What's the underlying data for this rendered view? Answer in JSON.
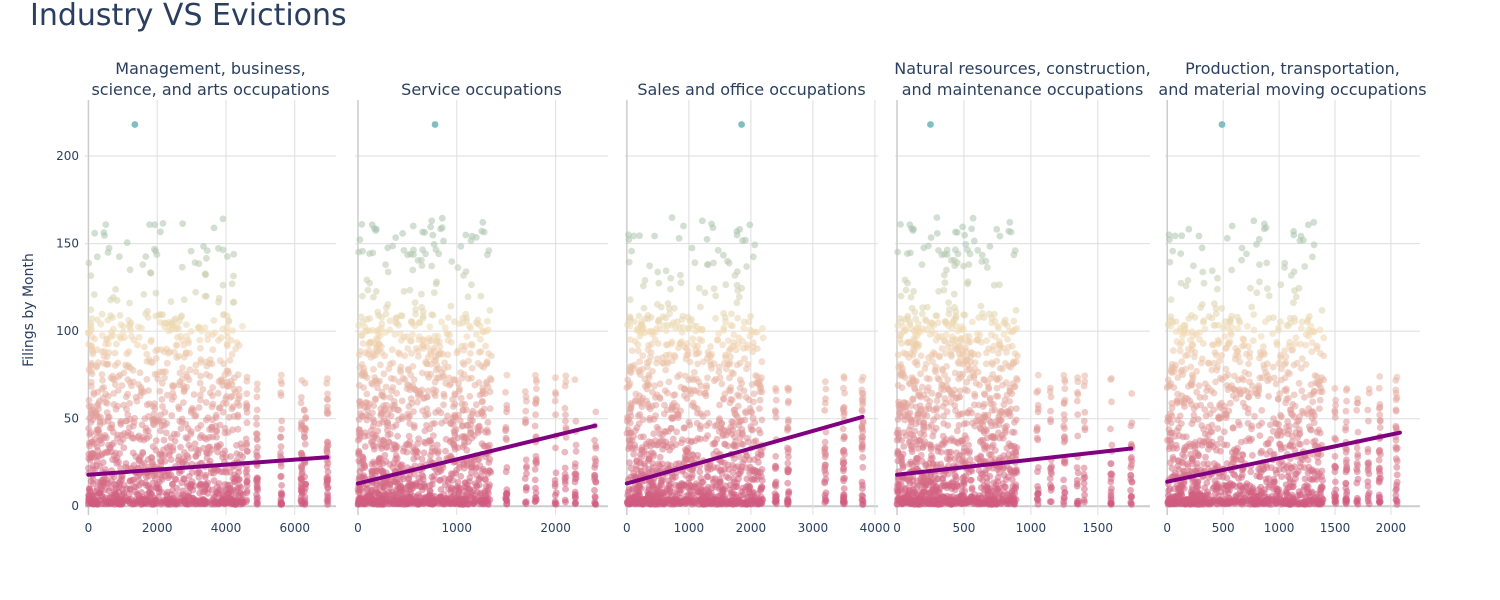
{
  "title": "Industry VS Evictions",
  "chart_data": [
    {
      "type": "scatter",
      "title": "Management, business,\nscience, and arts occupations",
      "ylabel": "Filings by Month",
      "xlim": [
        -100,
        7200
      ],
      "ylim": [
        -5,
        232
      ],
      "xticks": [
        0,
        2000,
        4000,
        6000
      ],
      "xtick_labels": [
        "0",
        "2000",
        "4000",
        "6000"
      ],
      "yticks": [
        0,
        50,
        100,
        150,
        200
      ],
      "ytick_labels": [
        "0",
        "50",
        "100",
        "150",
        "200"
      ],
      "x_cluster_max": 4500,
      "x_far_columns": [
        4600,
        4900,
        5600,
        6200,
        6300,
        6950
      ],
      "outlier": [
        1350,
        218
      ],
      "trend": [
        [
          0,
          18
        ],
        [
          6950,
          28
        ]
      ]
    },
    {
      "type": "scatter",
      "title": "Service occupations",
      "ylabel": "",
      "xlim": [
        -30,
        2530
      ],
      "ylim": [
        -5,
        232
      ],
      "xticks": [
        0,
        1000,
        2000
      ],
      "xtick_labels": [
        "0",
        "1000",
        "2000"
      ],
      "yticks": [
        0,
        50,
        100,
        150,
        200
      ],
      "ytick_labels": [
        "0",
        "50",
        "100",
        "150",
        "200"
      ],
      "x_cluster_max": 1350,
      "x_far_columns": [
        1500,
        1700,
        1800,
        2000,
        2100,
        2200,
        2400
      ],
      "outlier": [
        780,
        218
      ],
      "trend": [
        [
          0,
          13
        ],
        [
          2400,
          46
        ]
      ]
    },
    {
      "type": "scatter",
      "title": "Sales and office occupations",
      "ylabel": "",
      "xlim": [
        -30,
        4050
      ],
      "ylim": [
        -5,
        232
      ],
      "xticks": [
        0,
        1000,
        2000,
        3000,
        4000
      ],
      "xtick_labels": [
        "0",
        "1000",
        "2000",
        "3000",
        "4000"
      ],
      "yticks": [
        0,
        50,
        100,
        150,
        200
      ],
      "ytick_labels": [
        "0",
        "50",
        "100",
        "150",
        "200"
      ],
      "x_cluster_max": 2200,
      "x_far_columns": [
        2400,
        2600,
        3200,
        3500,
        3800
      ],
      "outlier": [
        1850,
        218
      ],
      "trend": [
        [
          0,
          13
        ],
        [
          3800,
          51
        ]
      ]
    },
    {
      "type": "scatter",
      "title": "Natural resources, construction,\nand maintenance occupations",
      "ylabel": "",
      "xlim": [
        -15,
        1890
      ],
      "ylim": [
        -5,
        232
      ],
      "xticks": [
        0,
        500,
        1000,
        1500
      ],
      "xtick_labels": [
        "0",
        "500",
        "1000",
        "1500"
      ],
      "yticks": [
        0,
        50,
        100,
        150,
        200
      ],
      "ytick_labels": [
        "0",
        "50",
        "100",
        "150",
        "200"
      ],
      "x_cluster_max": 900,
      "x_far_columns": [
        1050,
        1150,
        1250,
        1350,
        1400,
        1600,
        1750
      ],
      "outlier": [
        250,
        218
      ],
      "trend": [
        [
          0,
          18
        ],
        [
          1750,
          33
        ]
      ]
    },
    {
      "type": "scatter",
      "title": "Production, transportation,\nand material moving occupations",
      "ylabel": "",
      "xlim": [
        -20,
        2260
      ],
      "ylim": [
        -5,
        232
      ],
      "xticks": [
        0,
        500,
        1000,
        1500,
        2000
      ],
      "xtick_labels": [
        "0",
        "500",
        "1000",
        "1500",
        "2000"
      ],
      "yticks": [
        0,
        50,
        100,
        150,
        200
      ],
      "ytick_labels": [
        "0",
        "50",
        "100",
        "150",
        "200"
      ],
      "x_cluster_max": 1400,
      "x_far_columns": [
        1500,
        1600,
        1700,
        1800,
        1900,
        2050
      ],
      "outlier": [
        490,
        218
      ],
      "trend": [
        [
          0,
          14
        ],
        [
          2080,
          42
        ]
      ]
    }
  ],
  "colors": {
    "trend": "#800080",
    "grid": "#dedede",
    "text": "#2a3f5f",
    "outlier": "#7fbfc0",
    "scale_low": "#d0587e",
    "scale_mid": "#f0d9b0",
    "scale_high": "#a9c4ad"
  }
}
